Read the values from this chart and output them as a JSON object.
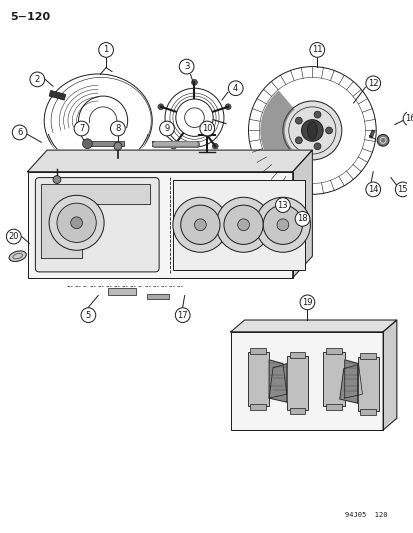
{
  "title": "5−120",
  "footer": "94J05  120",
  "bg_color": "#ffffff",
  "line_color": "#1a1a1a",
  "fig_width": 4.14,
  "fig_height": 5.33,
  "dpi": 100
}
